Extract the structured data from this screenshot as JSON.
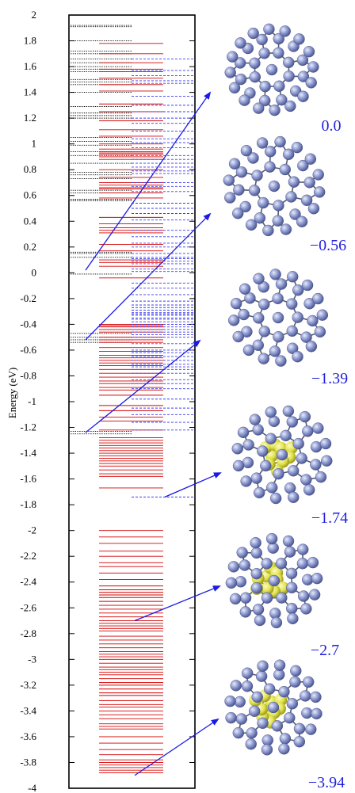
{
  "chart_data": {
    "type": "energy-level-diagram",
    "ylabel": "Energy (eV)",
    "ylim": [
      -4,
      2
    ],
    "yticks": [
      "2",
      "1.8",
      "1.6",
      "1.4",
      "1.2",
      "1",
      "0.8",
      "0.6",
      "0.4",
      "0.2",
      "0",
      "-0.2",
      "-0.4",
      "-0.6",
      "-0.8",
      "-1",
      "-1.2",
      "-1.4",
      "-1.6",
      "-1.8",
      "-2",
      "-2.2",
      "-2.4",
      "-2.6",
      "-2.8",
      "-3",
      "-3.2",
      "-3.4",
      "-3.6",
      "-3.8",
      "-4"
    ],
    "columns": [
      {
        "name": "column-1",
        "color": "#000000",
        "style": "dotted",
        "levels": [
          1.92,
          1.91,
          1.8,
          1.72,
          1.7,
          1.66,
          1.63,
          1.6,
          1.58,
          1.56,
          1.5,
          1.48,
          1.46,
          1.4,
          1.29,
          1.24,
          1.22,
          1.2,
          1.05,
          1.02,
          0.99,
          0.94,
          0.91,
          0.85,
          0.78,
          0.76,
          0.73,
          0.64,
          0.62,
          0.57,
          0.56,
          0.16,
          0.15,
          0.12,
          -0.01,
          -0.47,
          -0.5,
          -0.52,
          -0.54,
          -1.23,
          -1.25
        ]
      },
      {
        "name": "column-2",
        "color": "#d40000",
        "style": "solid",
        "levels": [
          1.78,
          1.7,
          1.63,
          1.58,
          1.56,
          1.51,
          1.46,
          1.41,
          1.31,
          1.25,
          1.18,
          1.11,
          1.06,
          1.0,
          0.96,
          0.94,
          0.93,
          0.92,
          0.9,
          0.88,
          0.8,
          0.74,
          0.7,
          0.68,
          0.66,
          0.65,
          0.62,
          0.58,
          0.43,
          0.38,
          0.35,
          0.33,
          0.31,
          0.22,
          0.17,
          0.1,
          0.08,
          0.05,
          -0.04,
          -0.4,
          -0.41,
          -0.42,
          -0.44,
          -0.46,
          -0.5,
          -0.52,
          -0.54,
          -0.58,
          -0.61,
          -0.64,
          -0.66,
          -0.68,
          -0.7,
          -0.72,
          -0.75,
          -0.78,
          -0.81,
          -0.84,
          -0.86,
          -0.89,
          -0.91,
          -0.95,
          -1.03,
          -1.07,
          -1.12,
          -1.15,
          -1.22,
          -1.28,
          -1.3,
          -1.32,
          -1.34,
          -1.36,
          -1.38,
          -1.4,
          -1.42,
          -1.44,
          -1.46,
          -1.48,
          -1.5,
          -1.53,
          -1.56,
          -1.58,
          -1.67,
          -2.0,
          -2.05,
          -2.1,
          -2.16,
          -2.2,
          -2.25,
          -2.28,
          -2.33,
          -2.38,
          -2.43,
          -2.46,
          -2.48,
          -2.5,
          -2.52,
          -2.55,
          -2.58,
          -2.61,
          -2.64,
          -2.67,
          -2.7,
          -2.72,
          -2.74,
          -2.76,
          -2.78,
          -2.82,
          -2.85,
          -2.88,
          -2.91,
          -2.94,
          -2.96,
          -2.98,
          -3.0,
          -3.03,
          -3.06,
          -3.08,
          -3.1,
          -3.12,
          -3.15,
          -3.18,
          -3.2,
          -3.23,
          -3.26,
          -3.28,
          -3.32,
          -3.35,
          -3.37,
          -3.4,
          -3.43,
          -3.46,
          -3.5,
          -3.52,
          -3.54,
          -3.6,
          -3.65,
          -3.7,
          -3.74,
          -3.78,
          -3.8,
          -3.82,
          -3.84,
          -3.86,
          -3.88
        ]
      },
      {
        "name": "column-3",
        "color": "#3a3af0",
        "style": "dashed",
        "levels": [
          1.66,
          1.57,
          1.53,
          1.49,
          1.47,
          1.37,
          1.3,
          1.25,
          1.2,
          1.16,
          1.1,
          1.04,
          1.01,
          0.97,
          0.91,
          0.88,
          0.85,
          0.82,
          0.79,
          0.77,
          0.7,
          0.67,
          0.63,
          0.54,
          0.5,
          0.46,
          0.41,
          0.33,
          0.28,
          0.23,
          0.2,
          0.15,
          0.12,
          0.11,
          0.09,
          0.07,
          0.03,
          0.01,
          -0.08,
          -0.12,
          -0.17,
          -0.22,
          -0.25,
          -0.27,
          -0.29,
          -0.31,
          -0.32,
          -0.33,
          -0.35,
          -0.36,
          -0.38,
          -0.4,
          -0.42,
          -0.44,
          -0.46,
          -0.48,
          -0.5,
          -0.55,
          -0.6,
          -0.62,
          -0.65,
          -0.68,
          -0.71,
          -0.73,
          -0.75,
          -0.78,
          -0.83,
          -0.86,
          -0.9,
          -0.98,
          -1.05,
          -1.1,
          -1.16,
          -1.22,
          -1.74
        ]
      }
    ],
    "energy_labels": [
      "0.0",
      "−0.56",
      "−1.39",
      "−1.74",
      "−2.7",
      "−3.94"
    ],
    "arrows": [
      {
        "from_column": "column-1",
        "from_energy": 0.02,
        "to_label": "0.0"
      },
      {
        "from_column": "column-1",
        "from_energy": -0.52,
        "to_label": "−0.56"
      },
      {
        "from_column": "column-1",
        "from_energy": -1.24,
        "to_label": "−1.39"
      },
      {
        "from_column": "column-3",
        "from_energy": -1.74,
        "to_label": "−1.74"
      },
      {
        "from_column": "column-2",
        "from_energy": -2.7,
        "to_label": "−2.7"
      },
      {
        "from_column": "column-2",
        "from_energy": -3.9,
        "to_label": "−3.94"
      }
    ],
    "structures": [
      {
        "name": "cage-structure-1",
        "color": "#8a96d0",
        "core": ""
      },
      {
        "name": "cage-structure-2",
        "color": "#8a96d0",
        "core": ""
      },
      {
        "name": "cage-structure-3",
        "color": "#8a96d0",
        "core": ""
      },
      {
        "name": "cage-structure-4",
        "color": "#8a96d0",
        "core": "#e6e64a"
      },
      {
        "name": "cage-structure-5",
        "color": "#8a96d0",
        "core": "#e6e64a"
      },
      {
        "name": "cage-structure-6",
        "color": "#8a96d0",
        "core": "#e6e64a"
      }
    ]
  }
}
